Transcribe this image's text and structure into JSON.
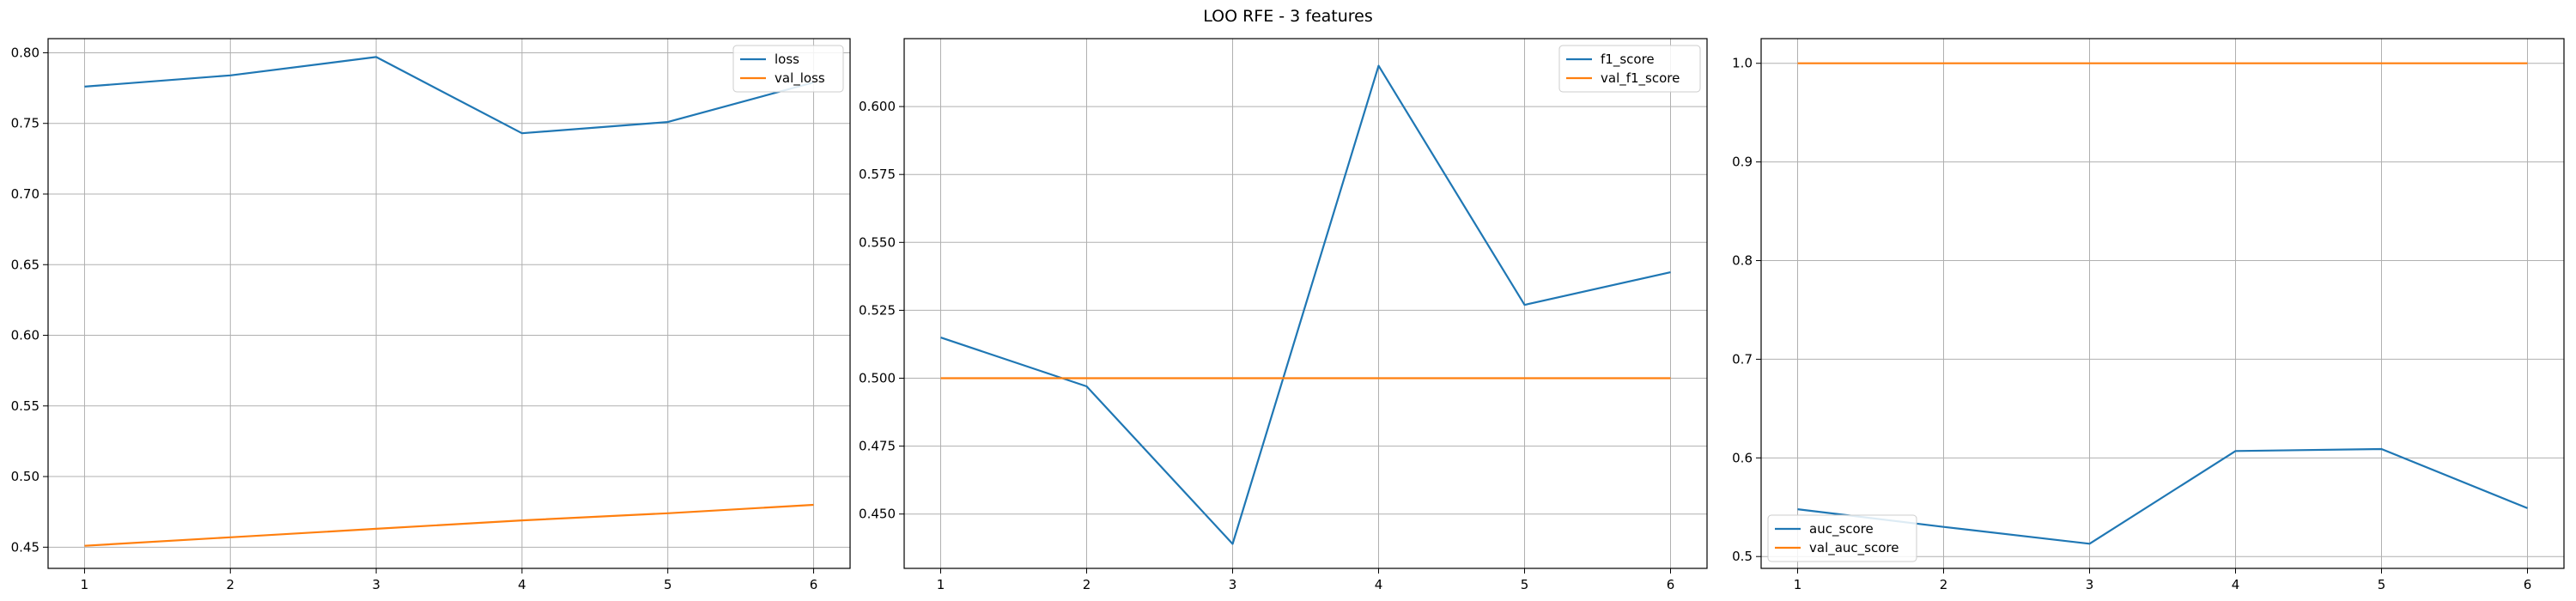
{
  "figure": {
    "title": "LOO RFE - 3 features"
  },
  "colors": {
    "series1": "#1f77b4",
    "series2": "#ff7f0e",
    "grid": "#b0b0b0",
    "axis": "#000000"
  },
  "chart_data": [
    {
      "type": "line",
      "x": [
        1,
        2,
        3,
        4,
        5,
        6
      ],
      "xticks": [
        "1",
        "2",
        "3",
        "4",
        "5",
        "6"
      ],
      "ylim": [
        0.435,
        0.81
      ],
      "yticks": [
        "0.45",
        "0.50",
        "0.55",
        "0.60",
        "0.65",
        "0.70",
        "0.75",
        "0.80"
      ],
      "ytick_values": [
        0.45,
        0.5,
        0.55,
        0.6,
        0.65,
        0.7,
        0.75,
        0.8
      ],
      "grid": true,
      "legend": "upper right",
      "series": [
        {
          "name": "loss",
          "values": [
            0.776,
            0.784,
            0.797,
            0.743,
            0.751,
            0.779
          ]
        },
        {
          "name": "val_loss",
          "values": [
            0.451,
            0.457,
            0.463,
            0.469,
            0.474,
            0.48
          ]
        }
      ]
    },
    {
      "type": "line",
      "x": [
        1,
        2,
        3,
        4,
        5,
        6
      ],
      "xticks": [
        "1",
        "2",
        "3",
        "4",
        "5",
        "6"
      ],
      "ylim": [
        0.43,
        0.625
      ],
      "yticks": [
        "0.450",
        "0.475",
        "0.500",
        "0.525",
        "0.550",
        "0.575",
        "0.600"
      ],
      "ytick_values": [
        0.45,
        0.475,
        0.5,
        0.525,
        0.55,
        0.575,
        0.6
      ],
      "grid": true,
      "legend": "upper right",
      "series": [
        {
          "name": "f1_score",
          "values": [
            0.515,
            0.497,
            0.439,
            0.615,
            0.527,
            0.539
          ]
        },
        {
          "name": "val_f1_score",
          "values": [
            0.5,
            0.5,
            0.5,
            0.5,
            0.5,
            0.5
          ]
        }
      ]
    },
    {
      "type": "line",
      "x": [
        1,
        2,
        3,
        4,
        5,
        6
      ],
      "xticks": [
        "1",
        "2",
        "3",
        "4",
        "5",
        "6"
      ],
      "ylim": [
        0.488,
        1.025
      ],
      "yticks": [
        "0.5",
        "0.6",
        "0.7",
        "0.8",
        "0.9",
        "1.0"
      ],
      "ytick_values": [
        0.5,
        0.6,
        0.7,
        0.8,
        0.9,
        1.0
      ],
      "grid": true,
      "legend": "lower left",
      "series": [
        {
          "name": "auc_score",
          "values": [
            0.548,
            0.53,
            0.513,
            0.607,
            0.609,
            0.549
          ]
        },
        {
          "name": "val_auc_score",
          "values": [
            1.0,
            1.0,
            1.0,
            1.0,
            1.0,
            1.0
          ]
        }
      ]
    }
  ]
}
